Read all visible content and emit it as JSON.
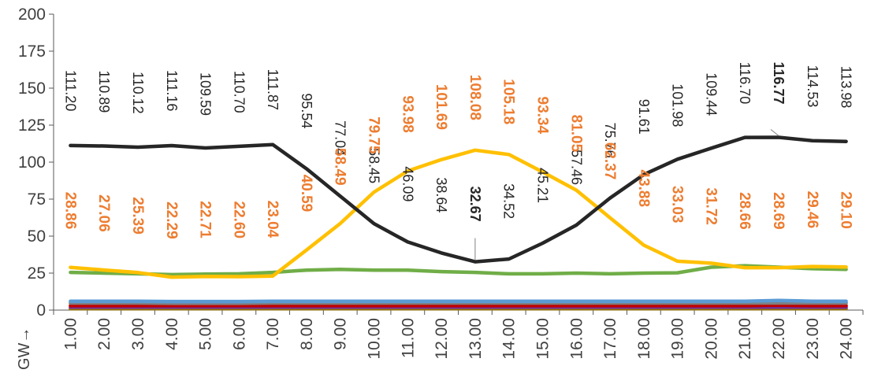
{
  "chart_data": {
    "type": "line",
    "title": "",
    "xlabel": "",
    "ylabel": "GW→",
    "ylim": [
      0,
      200
    ],
    "yticks": [
      0,
      25,
      50,
      75,
      100,
      125,
      150,
      175,
      200
    ],
    "grid": false,
    "categories": [
      "1.00",
      "2.00",
      "3.00",
      "4.00",
      "5.00",
      "6.00",
      "7.00",
      "8.00",
      "9.00",
      "10.00",
      "11.00",
      "12.00",
      "13.00",
      "14.00",
      "15.00",
      "16.00",
      "17.00",
      "18.00",
      "19.00",
      "20.00",
      "21.00",
      "22.00",
      "23.00",
      "24.00"
    ],
    "series": [
      {
        "color": "#262626",
        "label_color": "#262626",
        "labels": true,
        "bold_labels": [
          12,
          21
        ],
        "values": [
          111.2,
          110.89,
          110.12,
          111.16,
          109.59,
          110.7,
          111.87,
          95.54,
          77.04,
          58.45,
          46.09,
          38.64,
          32.67,
          34.52,
          45.21,
          57.46,
          75.76,
          91.61,
          101.98,
          109.44,
          116.7,
          116.77,
          114.53,
          113.98
        ]
      },
      {
        "color": "#FFC000",
        "label_color": "#ED7D31",
        "labels": true,
        "values": [
          28.86,
          27.06,
          25.39,
          22.29,
          22.71,
          22.6,
          23.04,
          40.59,
          58.49,
          79.75,
          93.98,
          101.69,
          108.08,
          105.18,
          93.34,
          81.05,
          62.37,
          43.88,
          33.03,
          31.72,
          28.66,
          28.69,
          29.46,
          29.1
        ]
      },
      {
        "color": "#70AD47",
        "labels": false,
        "values": [
          25.5,
          25,
          24.5,
          24,
          24.3,
          24.5,
          25.5,
          27,
          27.5,
          27,
          27,
          26,
          25.5,
          24.5,
          24.5,
          25,
          24.5,
          25,
          25.2,
          29,
          30,
          29,
          28,
          27.5
        ]
      },
      {
        "color": "#5B9BD5",
        "labels": false,
        "values": [
          6,
          6,
          6,
          5.8,
          5.8,
          5.8,
          6,
          6,
          6,
          6,
          6,
          6,
          6,
          6,
          6,
          6,
          6,
          6,
          6,
          6,
          6,
          6.5,
          6,
          6
        ]
      },
      {
        "color": "#7F7F7F",
        "labels": false,
        "values": [
          4.8,
          4.8,
          4.8,
          4.6,
          4.6,
          4.6,
          4.8,
          4.8,
          4.8,
          4.8,
          4.8,
          4.8,
          4.8,
          4.8,
          4.8,
          4.8,
          4.8,
          4.8,
          4.8,
          4.8,
          4.8,
          4.8,
          4.8,
          4.8
        ]
      },
      {
        "color": "#C00000",
        "labels": false,
        "values": [
          3,
          3,
          3,
          3,
          3,
          3,
          3,
          3,
          3,
          3,
          3,
          3,
          3,
          3,
          3,
          3,
          3,
          3,
          3,
          3,
          3,
          3.3,
          3,
          3
        ]
      },
      {
        "color": "#7030A0",
        "labels": false,
        "values": [
          2,
          2,
          2,
          2,
          2,
          2,
          2,
          2,
          2,
          2,
          2,
          2,
          2,
          2,
          2,
          2,
          2,
          2,
          2,
          2,
          2,
          2,
          2,
          2
        ]
      },
      {
        "color": "#997300",
        "labels": false,
        "values": [
          1,
          1,
          1,
          1,
          1,
          1,
          1,
          1,
          1,
          1,
          1,
          1,
          1,
          1,
          1,
          1,
          1,
          1,
          1,
          1,
          1,
          1,
          1,
          1
        ]
      }
    ]
  }
}
